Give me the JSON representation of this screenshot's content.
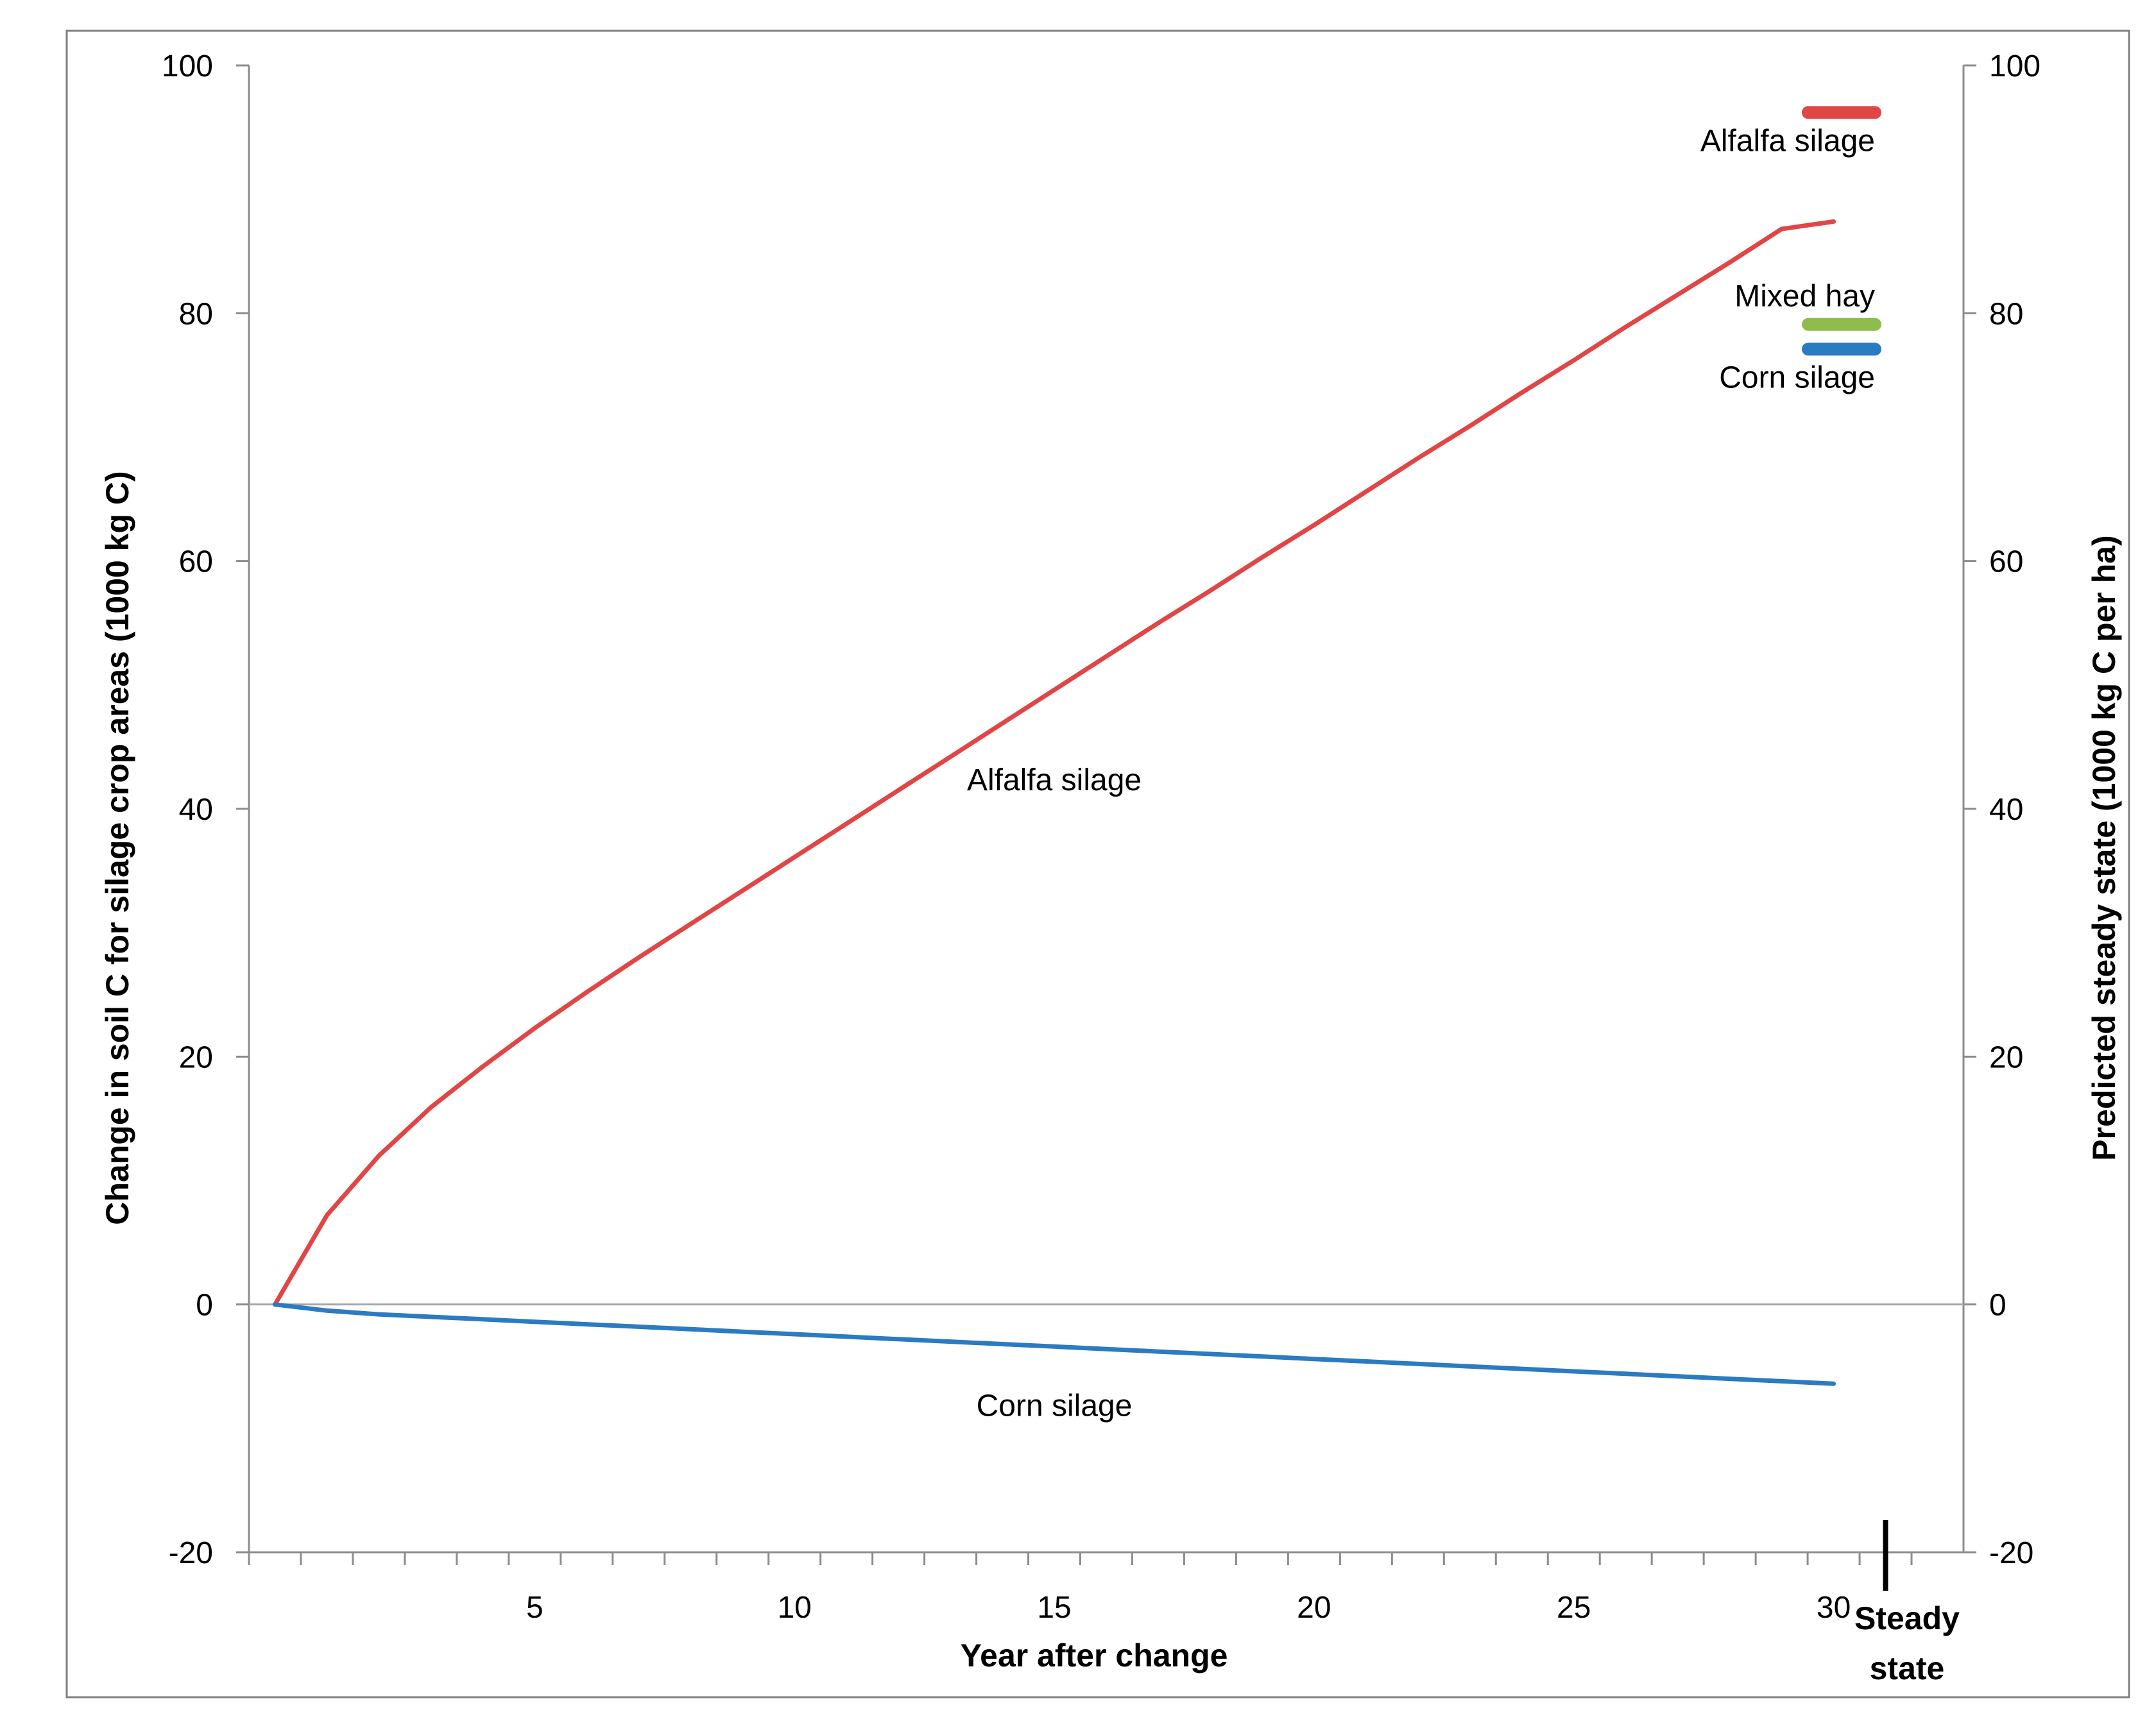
{
  "chart_data": {
    "type": "line",
    "title": "",
    "xlabel": "Year after change",
    "ylabel": "Change in soil C for silage crop areas (1000 kg C)",
    "y2label": "Predicted steady state (1000 kg C per ha)",
    "xlim": [
      -0.5,
      32.5
    ],
    "ylim": [
      -20,
      100
    ],
    "y2lim": [
      -20,
      100
    ],
    "x_ticks": [
      5,
      10,
      15,
      20,
      25,
      30
    ],
    "y_ticks": [
      -20,
      0,
      20,
      40,
      60,
      80,
      100
    ],
    "y2_ticks": [
      -20,
      0,
      20,
      40,
      60,
      80,
      100
    ],
    "steady_state_label": [
      "Steady",
      "state"
    ],
    "zero_line": true,
    "grid": false,
    "series": [
      {
        "name": "Alfalfa silage",
        "color": "#e04646",
        "x": [
          0,
          1,
          2,
          3,
          4,
          5,
          6,
          7,
          8,
          9,
          10,
          11,
          12,
          13,
          14,
          15,
          16,
          17,
          18,
          19,
          20,
          21,
          22,
          23,
          24,
          25,
          26,
          27,
          28,
          29,
          30
        ],
        "y": [
          0,
          7.2,
          12.0,
          15.9,
          19.2,
          22.3,
          25.2,
          28.0,
          30.7,
          33.4,
          36.1,
          38.8,
          41.5,
          44.2,
          46.9,
          49.6,
          52.3,
          55.0,
          57.6,
          60.3,
          62.9,
          65.6,
          68.3,
          70.9,
          73.6,
          76.2,
          78.9,
          81.5,
          84.1,
          86.8,
          87.4
        ]
      },
      {
        "name": "Corn silage",
        "color": "#2b7bc2",
        "x": [
          0,
          1,
          2,
          3,
          4,
          5,
          6,
          7,
          8,
          9,
          10,
          11,
          12,
          13,
          14,
          15,
          16,
          17,
          18,
          19,
          20,
          21,
          22,
          23,
          24,
          25,
          26,
          27,
          28,
          29,
          30
        ],
        "y": [
          0,
          -0.5,
          -0.8,
          -1.0,
          -1.2,
          -1.4,
          -1.6,
          -1.8,
          -2.0,
          -2.2,
          -2.4,
          -2.6,
          -2.8,
          -3.0,
          -3.2,
          -3.4,
          -3.6,
          -3.8,
          -4.0,
          -4.2,
          -4.4,
          -4.6,
          -4.8,
          -5.0,
          -5.2,
          -5.4,
          -5.6,
          -5.8,
          -6.0,
          -6.2,
          -6.4
        ]
      }
    ],
    "steady_state_markers": [
      {
        "name": "Alfalfa silage",
        "value": 96.2,
        "color": "#e04646"
      },
      {
        "name": "Mixed hay",
        "value": 79.1,
        "color": "#8fbc4d"
      },
      {
        "name": "Corn silage",
        "value": 77.1,
        "color": "#2b7bc2"
      }
    ],
    "annotations": [
      {
        "text": "Alfalfa silage",
        "x": 15,
        "y": 41.5
      },
      {
        "text": "Corn silage",
        "x": 15,
        "y": -9.0
      }
    ]
  }
}
